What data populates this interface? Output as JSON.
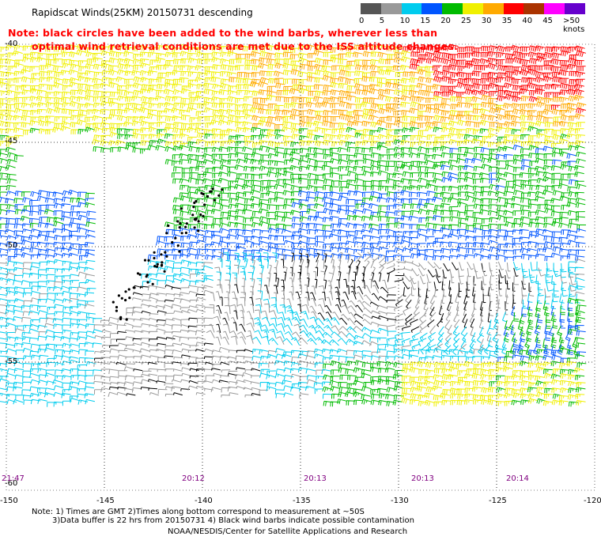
{
  "title": "Rapidscat Winds(25KM) 20150731 descending",
  "note": {
    "line1": "Note: black circles have been added to the wind barbs, wherever less than",
    "line2": "optimal wind retrieval conditions are met due to the ISS altitude changes."
  },
  "legend": {
    "labels": [
      "0",
      "5",
      "10",
      "15",
      "20",
      "25",
      "30",
      "35",
      "40",
      "45",
      ">50 knots"
    ],
    "colors": [
      "#555555",
      "#999999",
      "#00ccee",
      "#0055ff",
      "#00bb00",
      "#f0f000",
      "#ffaa00",
      "#ff0000",
      "#aa3300",
      "#ff00ff",
      "#6600cc"
    ]
  },
  "lat_labels": [
    "-40",
    "-45",
    "-50",
    "-55",
    "-60"
  ],
  "lon_labels": [
    "-150",
    "-145",
    "-140",
    "-135",
    "-130",
    "-125",
    "-120"
  ],
  "time_labels": [
    "21:47",
    "20:12",
    "20:13",
    "20:13",
    "20:14"
  ],
  "footer": {
    "line1": "Note: 1) Times are GMT 2)Times along bottom correspond to measurement at ~50S",
    "line2": "3)Data buffer is 22 hrs from 20150731 4) Black wind barbs indicate possible contamination",
    "line3": "NOAA/NESDIS/Center for Satellite Applications and Research"
  },
  "map_data": {
    "lon_range": [
      -150,
      -120
    ],
    "lat_range": [
      -60,
      -40
    ],
    "grid": "dotted"
  }
}
